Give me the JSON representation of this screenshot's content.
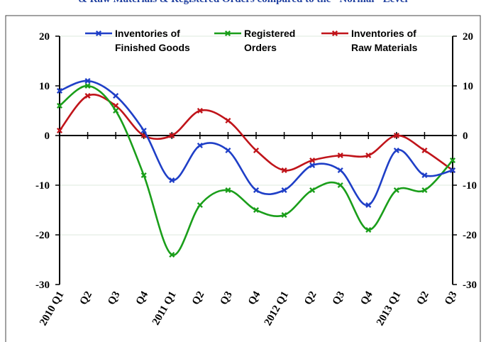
{
  "title": "& Raw Materials & Registered Orders compared to the \"Normal\" Level",
  "chart_data": {
    "type": "line",
    "categories": [
      "2010 Q1",
      "Q2",
      "Q3",
      "Q4",
      "2011 Q1",
      "Q2",
      "Q3",
      "Q4",
      "2012 Q1",
      "Q2",
      "Q3",
      "Q4",
      "2013 Q1",
      "Q2",
      "Q3"
    ],
    "ylim": [
      -30,
      20
    ],
    "yticks": [
      -30,
      -20,
      -10,
      0,
      10,
      20
    ],
    "secondary_axis": true,
    "grid": true,
    "legend_position": "top",
    "smoothed": true,
    "series": [
      {
        "name": "Inventories of Finished Goods",
        "legend_lines": [
          "Inventories of",
          "Finished Goods"
        ],
        "color": "#1f3fc7",
        "values": [
          9,
          11,
          8,
          1,
          -9,
          -2,
          -3,
          -11,
          -11,
          -6,
          -7,
          -14,
          -3,
          -8,
          -7
        ]
      },
      {
        "name": "Registered Orders",
        "legend_lines": [
          "Registered",
          "Orders"
        ],
        "color": "#1a9e1a",
        "values": [
          6,
          10,
          5,
          -8,
          -24,
          -14,
          -11,
          -15,
          -16,
          -11,
          -10,
          -19,
          -11,
          -11,
          -5
        ]
      },
      {
        "name": "Inventories of Raw Materials",
        "legend_lines": [
          "Inventories of",
          "Raw Materials"
        ],
        "color": "#c0141a",
        "values": [
          1,
          8,
          6,
          0,
          0,
          5,
          3,
          -3,
          -7,
          -5,
          -4,
          -4,
          0,
          -3,
          -7
        ]
      }
    ]
  }
}
